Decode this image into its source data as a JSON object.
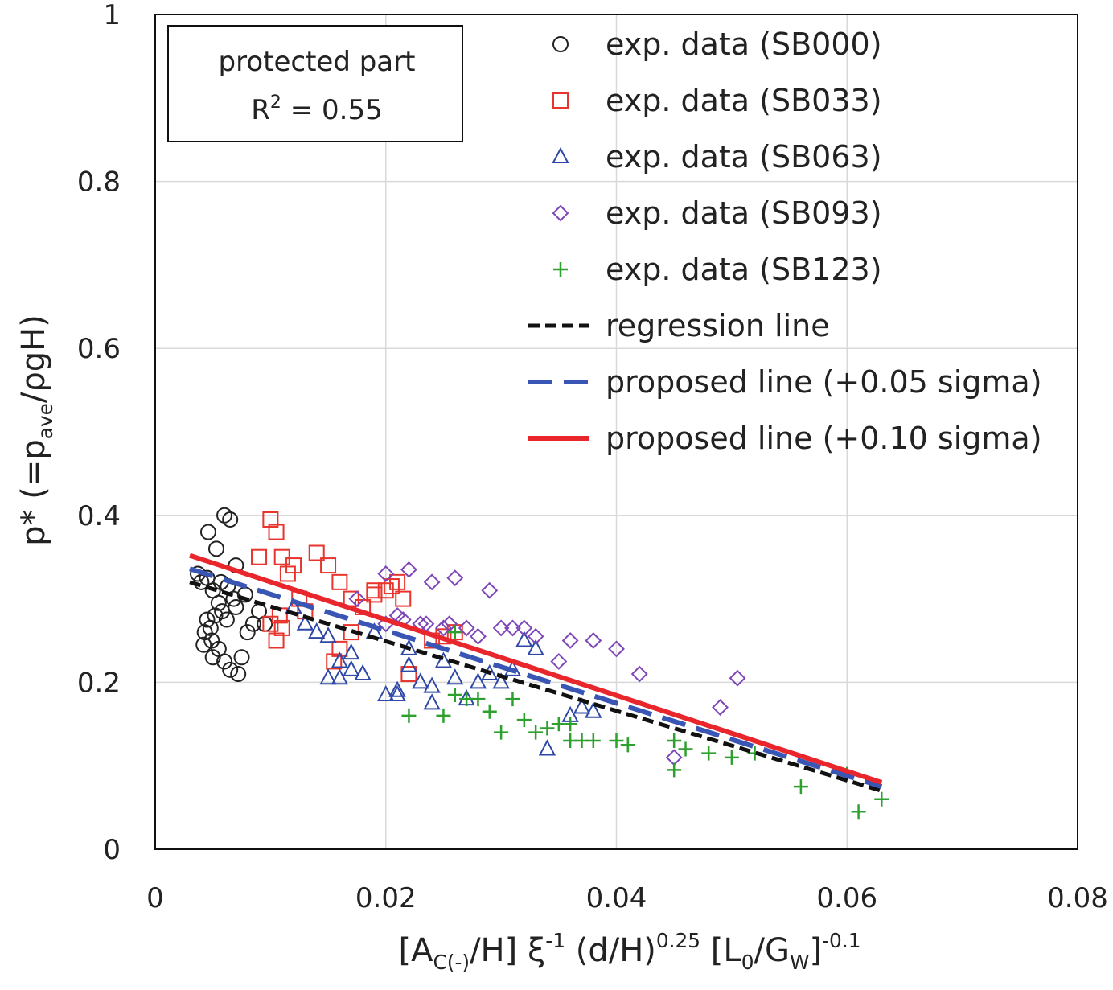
{
  "chart_data": {
    "type": "scatter",
    "title": "",
    "annotation": {
      "line1": "protected part",
      "line2_prefix": "R",
      "line2_sup": "2",
      "line2_suffix": " = 0.55"
    },
    "xlabel_parts": [
      {
        "t": "[A",
        "s": "n"
      },
      {
        "t": "C(-)",
        "s": "sub"
      },
      {
        "t": "/H] ξ",
        "s": "n"
      },
      {
        "t": "-1",
        "s": "sup"
      },
      {
        "t": " (d/H)",
        "s": "n"
      },
      {
        "t": "0.25",
        "s": "sup"
      },
      {
        "t": " [L",
        "s": "n"
      },
      {
        "t": "0",
        "s": "sub"
      },
      {
        "t": "/G",
        "s": "n"
      },
      {
        "t": "W",
        "s": "sub"
      },
      {
        "t": "]",
        "s": "n"
      },
      {
        "t": "-0.1",
        "s": "sup"
      }
    ],
    "ylabel_parts": [
      {
        "t": "p* (=p",
        "s": "n"
      },
      {
        "t": "ave",
        "s": "sub"
      },
      {
        "t": "/ρgH)",
        "s": "n"
      }
    ],
    "xlim": [
      0,
      0.08
    ],
    "ylim": [
      0,
      1
    ],
    "xticks": [
      0,
      0.02,
      0.04,
      0.06,
      0.08
    ],
    "xtick_labels": [
      "0",
      "0.02",
      "0.04",
      "0.06",
      "0.08"
    ],
    "yticks": [
      0,
      0.2,
      0.4,
      0.6,
      0.8,
      1
    ],
    "ytick_labels": [
      "0",
      "0.2",
      "0.4",
      "0.6",
      "0.8",
      "1"
    ],
    "grid": true,
    "legend_position": "top-right",
    "series": [
      {
        "name": "exp. data (SB000)",
        "marker": "circle",
        "color": "#222222",
        "x": [
          0.0037,
          0.0045,
          0.005,
          0.0055,
          0.0043,
          0.0049,
          0.0042,
          0.0048,
          0.0052,
          0.0058,
          0.0046,
          0.0053,
          0.006,
          0.0065,
          0.007,
          0.0057,
          0.0063,
          0.0068,
          0.0045,
          0.005,
          0.0055,
          0.006,
          0.0065,
          0.0072,
          0.0075,
          0.008,
          0.0085,
          0.009,
          0.0095,
          0.004,
          0.0062,
          0.007,
          0.0078
        ],
        "y": [
          0.33,
          0.325,
          0.31,
          0.295,
          0.26,
          0.25,
          0.245,
          0.265,
          0.28,
          0.285,
          0.38,
          0.36,
          0.4,
          0.395,
          0.34,
          0.32,
          0.315,
          0.3,
          0.275,
          0.23,
          0.24,
          0.225,
          0.215,
          0.21,
          0.23,
          0.26,
          0.27,
          0.285,
          0.27,
          0.32,
          0.275,
          0.29,
          0.305
        ]
      },
      {
        "name": "exp. data (SB033)",
        "marker": "square",
        "color": "#e8342c",
        "x": [
          0.01,
          0.0105,
          0.011,
          0.009,
          0.012,
          0.014,
          0.015,
          0.016,
          0.017,
          0.018,
          0.019,
          0.02,
          0.021,
          0.022,
          0.024,
          0.025,
          0.026,
          0.01,
          0.0105,
          0.011,
          0.0115,
          0.0125,
          0.013,
          0.017,
          0.0155,
          0.016,
          0.019,
          0.0205,
          0.0215,
          0.0108
        ],
        "y": [
          0.395,
          0.38,
          0.35,
          0.35,
          0.34,
          0.355,
          0.34,
          0.32,
          0.3,
          0.29,
          0.31,
          0.31,
          0.32,
          0.21,
          0.25,
          0.255,
          0.26,
          0.27,
          0.25,
          0.265,
          0.33,
          0.3,
          0.285,
          0.26,
          0.225,
          0.24,
          0.305,
          0.315,
          0.3,
          0.28
        ]
      },
      {
        "name": "exp. data (SB063)",
        "marker": "triangle",
        "color": "#2e48a8",
        "x": [
          0.012,
          0.013,
          0.014,
          0.015,
          0.016,
          0.017,
          0.018,
          0.019,
          0.02,
          0.021,
          0.022,
          0.023,
          0.024,
          0.025,
          0.026,
          0.027,
          0.028,
          0.029,
          0.03,
          0.031,
          0.032,
          0.033,
          0.034,
          0.036,
          0.037,
          0.038,
          0.015,
          0.016,
          0.017,
          0.021,
          0.022,
          0.024
        ],
        "y": [
          0.29,
          0.27,
          0.26,
          0.205,
          0.225,
          0.235,
          0.21,
          0.26,
          0.185,
          0.19,
          0.24,
          0.2,
          0.175,
          0.225,
          0.205,
          0.18,
          0.2,
          0.21,
          0.2,
          0.215,
          0.25,
          0.24,
          0.12,
          0.16,
          0.17,
          0.165,
          0.255,
          0.205,
          0.215,
          0.185,
          0.22,
          0.195
        ]
      },
      {
        "name": "exp. data (SB093)",
        "marker": "diamond",
        "color": "#7d46b8",
        "x": [
          0.0175,
          0.02,
          0.021,
          0.022,
          0.023,
          0.024,
          0.025,
          0.026,
          0.028,
          0.029,
          0.03,
          0.031,
          0.032,
          0.033,
          0.035,
          0.036,
          0.038,
          0.04,
          0.042,
          0.045,
          0.049,
          0.0505,
          0.02,
          0.0215,
          0.0235,
          0.0255,
          0.027
        ],
        "y": [
          0.3,
          0.33,
          0.28,
          0.335,
          0.27,
          0.32,
          0.265,
          0.325,
          0.255,
          0.31,
          0.265,
          0.265,
          0.265,
          0.255,
          0.225,
          0.25,
          0.25,
          0.24,
          0.21,
          0.11,
          0.17,
          0.205,
          0.27,
          0.275,
          0.27,
          0.27,
          0.265
        ]
      },
      {
        "name": "exp. data (SB123)",
        "marker": "plus",
        "color": "#2ea02e",
        "x": [
          0.022,
          0.025,
          0.026,
          0.027,
          0.028,
          0.029,
          0.03,
          0.031,
          0.032,
          0.033,
          0.034,
          0.035,
          0.036,
          0.037,
          0.038,
          0.04,
          0.041,
          0.045,
          0.046,
          0.048,
          0.05,
          0.052,
          0.056,
          0.06,
          0.061,
          0.063,
          0.026,
          0.036,
          0.041,
          0.045
        ],
        "y": [
          0.16,
          0.16,
          0.185,
          0.18,
          0.18,
          0.165,
          0.14,
          0.18,
          0.155,
          0.14,
          0.145,
          0.15,
          0.13,
          0.13,
          0.13,
          0.13,
          0.125,
          0.095,
          0.12,
          0.115,
          0.11,
          0.115,
          0.075,
          0.09,
          0.045,
          0.06,
          0.26,
          0.15,
          0.125,
          0.13
        ]
      },
      {
        "name": "regression line",
        "marker": "line",
        "style": "short-dash",
        "color": "#111111",
        "x": [
          0.003,
          0.063
        ],
        "y": [
          0.32,
          0.07
        ]
      },
      {
        "name": "proposed line (+0.05 sigma)",
        "marker": "line",
        "style": "long-dash",
        "color": "#3a56b5",
        "x": [
          0.003,
          0.063
        ],
        "y": [
          0.336,
          0.075
        ]
      },
      {
        "name": "proposed line (+0.10 sigma)",
        "marker": "line",
        "style": "solid",
        "color": "#e8262c",
        "x": [
          0.003,
          0.063
        ],
        "y": [
          0.352,
          0.08
        ]
      }
    ]
  }
}
